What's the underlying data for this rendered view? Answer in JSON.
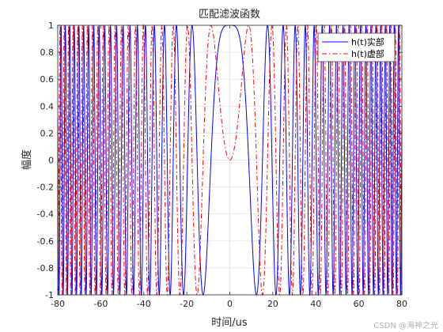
{
  "chart_data": {
    "type": "line",
    "title": "匹配滤波函数",
    "xlabel": "时间/us",
    "ylabel": "幅度",
    "xlim": [
      -80,
      80
    ],
    "ylim": [
      -1,
      1
    ],
    "x_ticks": [
      "-80",
      "-60",
      "-40",
      "-20",
      "0",
      "20",
      "40",
      "60",
      "80"
    ],
    "y_ticks": [
      "-1",
      "-0.8",
      "-0.6",
      "-0.4",
      "-0.2",
      "0",
      "0.2",
      "0.4",
      "0.6",
      "0.8",
      "1"
    ],
    "grid": true,
    "legend_position": "top-right",
    "series": [
      {
        "name": "h(t)实部",
        "color": "#0000ff",
        "style": "solid",
        "formula": "cos(pi*K*t^2)",
        "chirp_rate_per_us2": 0.0065,
        "x_step_us": 0.05
      },
      {
        "name": "h(t)虚部",
        "color": "#ff0000",
        "style": "dash-dot",
        "formula": "sin(pi*K*t^2)",
        "chirp_rate_per_us2": 0.0065,
        "x_step_us": 0.05
      }
    ]
  },
  "watermark": "CSDN @海神之光"
}
